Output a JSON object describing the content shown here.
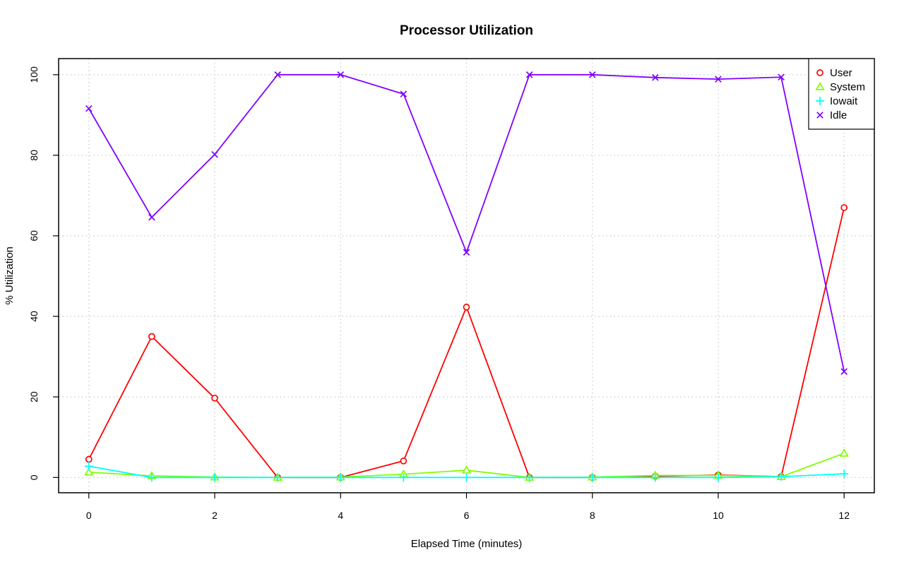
{
  "chart_data": {
    "type": "line",
    "title": "Processor Utilization",
    "xlabel": "Elapsed Time (minutes)",
    "ylabel": "% Utilization",
    "x": [
      0,
      1,
      2,
      3,
      4,
      5,
      6,
      7,
      8,
      9,
      10,
      11,
      12
    ],
    "xlim": [
      -0.48,
      12.48
    ],
    "ylim": [
      -3.8,
      104
    ],
    "xticks": [
      0,
      2,
      4,
      6,
      8,
      10,
      12
    ],
    "yticks": [
      0,
      20,
      40,
      60,
      80,
      100
    ],
    "grid": true,
    "legend_position": "top-right",
    "series": [
      {
        "name": "User",
        "color": "#ff0000",
        "marker": "circle",
        "values": [
          4.5,
          35,
          19.7,
          0,
          0,
          4.1,
          42.3,
          0,
          0,
          0.3,
          0.6,
          0.2,
          67
        ]
      },
      {
        "name": "System",
        "color": "#80ff00",
        "marker": "triangle",
        "values": [
          1.3,
          0.4,
          0.1,
          0,
          0.1,
          0.8,
          1.8,
          0,
          0.1,
          0.5,
          0.5,
          0.2,
          6
        ]
      },
      {
        "name": "Iowait",
        "color": "#00ffff",
        "marker": "plus",
        "values": [
          2.8,
          0,
          0,
          0,
          0,
          0,
          0,
          0,
          0,
          0,
          0,
          0.2,
          0.9
        ]
      },
      {
        "name": "Idle",
        "color": "#8000ff",
        "marker": "cross",
        "values": [
          91.6,
          64.6,
          80.2,
          100,
          100,
          95.2,
          55.9,
          100,
          100,
          99.3,
          98.9,
          99.4,
          26.3
        ]
      }
    ]
  }
}
